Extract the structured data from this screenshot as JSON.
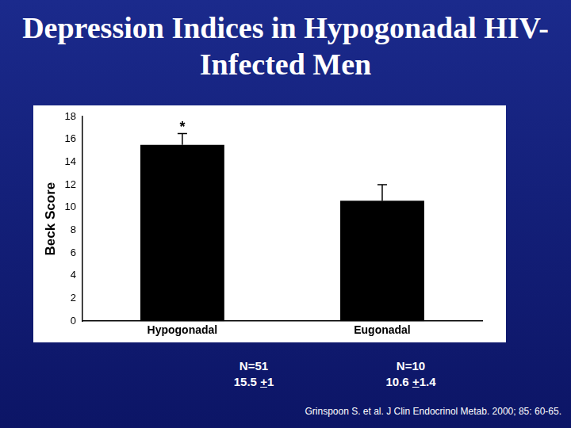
{
  "chart_data": {
    "type": "bar",
    "title": "Depression Indices in Hypogonadal HIV-Infected Men",
    "y_label": "Beck Score",
    "categories": [
      "Hypogonadal",
      "Eugonadal"
    ],
    "values": [
      15.5,
      10.6
    ],
    "errors": [
      1,
      1.4
    ],
    "color": "#000000",
    "ylim": [
      0,
      18
    ],
    "yticks": [
      0,
      2,
      4,
      6,
      8,
      10,
      12,
      14,
      16,
      18
    ],
    "grid": false,
    "annotations": [
      {
        "text": "*",
        "category": "Hypogonadal"
      }
    ]
  },
  "notes": [
    {
      "n": "N=51",
      "summary": "15.5 +1"
    },
    {
      "n": "N=10",
      "summary": "10.6 +1.4"
    }
  ],
  "citation": "Grinspoon S. et al. J Clin Endocrinol Metab. 2000; 85: 60-65."
}
